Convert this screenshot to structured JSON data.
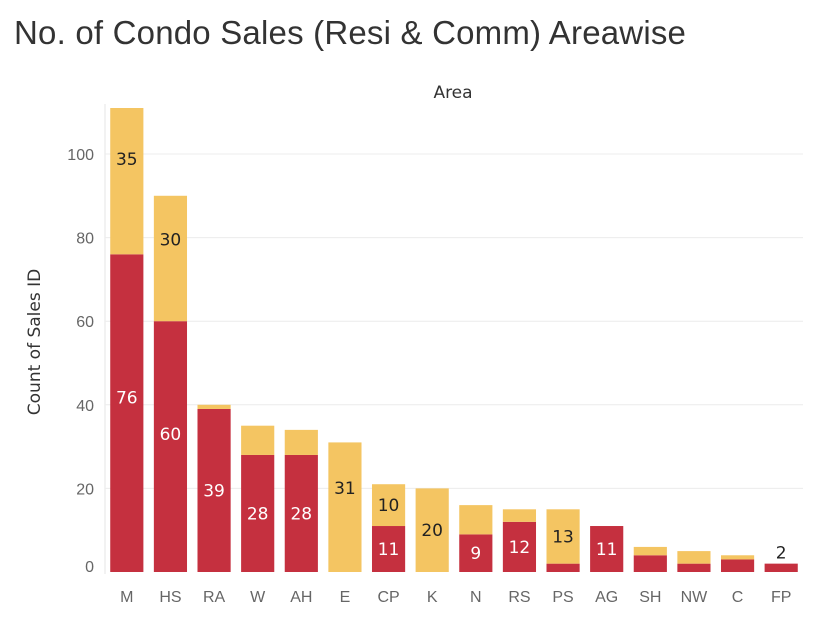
{
  "chart_data": {
    "type": "bar",
    "stacked": true,
    "title": "No. of Condo Sales (Resi & Comm) Areawise",
    "column_header": "Area",
    "ylabel": "Count of Sales ID",
    "categories": [
      "M",
      "HS",
      "RA",
      "W",
      "AH",
      "E",
      "CP",
      "K",
      "N",
      "RS",
      "PS",
      "AG",
      "SH",
      "NW",
      "C",
      "FP"
    ],
    "series": [
      {
        "color": "#c5303f",
        "values": [
          76,
          60,
          39,
          28,
          28,
          0,
          11,
          0,
          9,
          12,
          2,
          11,
          4,
          2,
          3,
          2
        ]
      },
      {
        "color": "#f4c562",
        "values": [
          35,
          30,
          1,
          7,
          6,
          31,
          10,
          20,
          7,
          3,
          13,
          0,
          2,
          3,
          1,
          0
        ]
      }
    ],
    "data_labels": [
      {
        "category": "M",
        "series": 0,
        "text": "76"
      },
      {
        "category": "M",
        "series": 1,
        "text": "35"
      },
      {
        "category": "HS",
        "series": 0,
        "text": "60"
      },
      {
        "category": "HS",
        "series": 1,
        "text": "30"
      },
      {
        "category": "RA",
        "series": 0,
        "text": "39"
      },
      {
        "category": "W",
        "series": 0,
        "text": "28"
      },
      {
        "category": "AH",
        "series": 0,
        "text": "28"
      },
      {
        "category": "E",
        "series": 1,
        "text": "31"
      },
      {
        "category": "CP",
        "series": 0,
        "text": "11"
      },
      {
        "category": "CP",
        "series": 1,
        "text": "10"
      },
      {
        "category": "K",
        "series": 1,
        "text": "20"
      },
      {
        "category": "N",
        "series": 0,
        "text": "9"
      },
      {
        "category": "RS",
        "series": 0,
        "text": "12"
      },
      {
        "category": "PS",
        "series": 1,
        "text": "13"
      },
      {
        "category": "AG",
        "series": 0,
        "text": "11"
      },
      {
        "category": "FP",
        "series": 0,
        "text": "2",
        "above": true
      }
    ],
    "yticks": [
      0,
      20,
      40,
      60,
      80,
      100
    ],
    "ylim": [
      0,
      111
    ],
    "grid": true,
    "legend": false
  }
}
